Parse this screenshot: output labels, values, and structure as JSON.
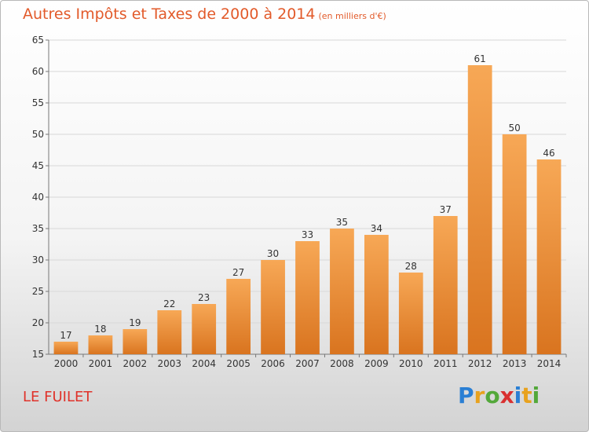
{
  "header": {
    "title": "Autres Impôts et Taxes de 2000 à 2014",
    "subtitle": "(en milliers d'€)"
  },
  "footer": {
    "commune": "LE FUILET",
    "brand": [
      "P",
      "r",
      "o",
      "x",
      "i",
      "t",
      "i"
    ],
    "brand_colors": [
      "#2a7fd4",
      "#e8a21e",
      "#53a83a",
      "#d93030",
      "#2a7fd4",
      "#e8a21e",
      "#53a83a"
    ]
  },
  "colors": {
    "bar_light": "#f7a856",
    "bar_dark": "#d9741f",
    "title": "#e25a2a",
    "grid": "#d8d8d8"
  },
  "chart_data": {
    "type": "bar",
    "title": "Autres Impôts et Taxes de 2000 à 2014",
    "subtitle": "(en milliers d'€)",
    "xlabel": "",
    "ylabel": "",
    "categories": [
      "2000",
      "2001",
      "2002",
      "2003",
      "2004",
      "2005",
      "2006",
      "2007",
      "2008",
      "2009",
      "2010",
      "2011",
      "2012",
      "2013",
      "2014"
    ],
    "values": [
      17,
      18,
      19,
      22,
      23,
      27,
      30,
      33,
      35,
      34,
      28,
      37,
      61,
      50,
      46
    ],
    "ylim": [
      15,
      65
    ],
    "yticks": [
      15,
      20,
      25,
      30,
      35,
      40,
      45,
      50,
      55,
      60,
      65
    ],
    "grid": true,
    "legend": "none"
  }
}
